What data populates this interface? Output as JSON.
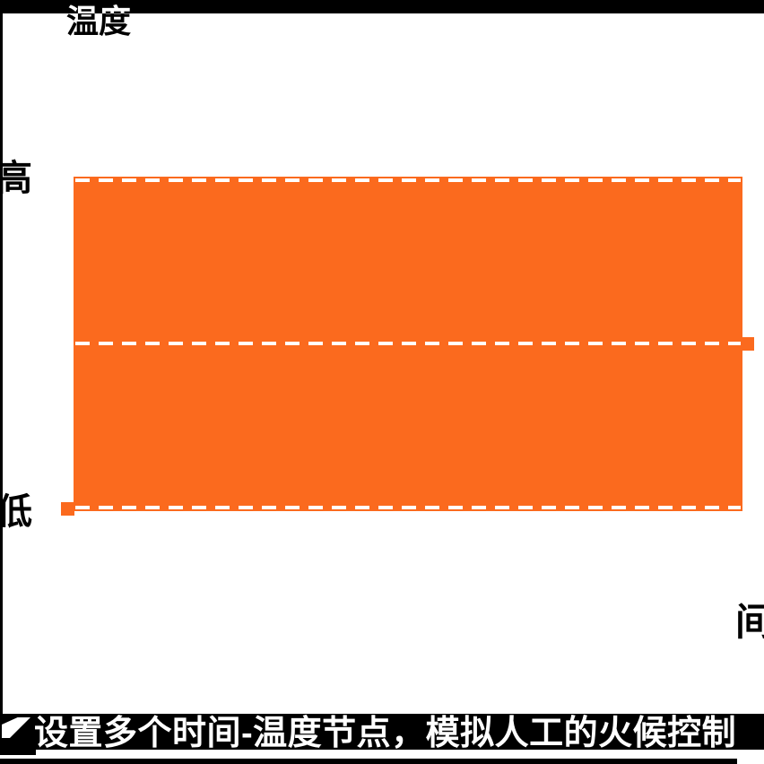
{
  "colors": {
    "background": "#FFFFFF",
    "frame_black": "#000000",
    "area_orange": "#FB6A1E",
    "dash_white": "#FFFFFF",
    "label_black": "#000000",
    "caption_white": "#FFFFFF"
  },
  "labels": {
    "y_axis_title": "温度",
    "y_tick_high": "高",
    "y_tick_low": "低",
    "x_axis_label": "间"
  },
  "caption": {
    "text": "设置多个时间-温度节点，模拟人工的火候控制"
  },
  "chart_data": {
    "type": "area",
    "title": "温度",
    "ylabel": "温度",
    "xlabel": "间",
    "y_tick_labels": [
      "高",
      "低"
    ],
    "x_tick_labels": [],
    "ylim_labels": [
      "低",
      "高"
    ],
    "fill_color": "#FB6A1E",
    "grid": false,
    "legend": "none",
    "series": [
      {
        "name": "temperature-profile-fill",
        "description_levels": [
          {
            "label": "高",
            "value": 1.0,
            "line_style": "white-dashed",
            "marker": null
          },
          {
            "label": "",
            "value": 0.5,
            "line_style": "white-dashed",
            "marker": "square-at-right-end"
          },
          {
            "label": "低",
            "value": 0.0,
            "line_style": "white-dashed",
            "marker": "square-at-left-end"
          }
        ],
        "fill_between": [
          0.0,
          1.0
        ]
      }
    ],
    "markers": [
      {
        "shape": "square",
        "color": "#FB6A1E",
        "position": "right end of middle dashed level"
      },
      {
        "shape": "square",
        "color": "#FB6A1E",
        "position": "left end of low dashed level"
      }
    ]
  }
}
